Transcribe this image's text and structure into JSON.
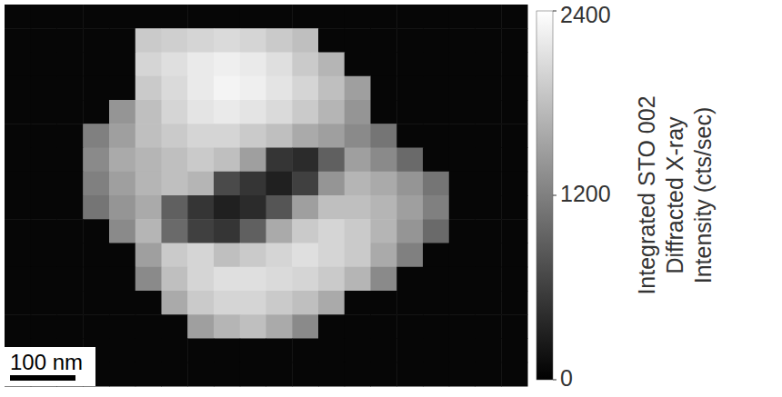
{
  "chart_data": {
    "type": "heatmap",
    "cells": [
      [
        60,
        60,
        60,
        60,
        60,
        60,
        60,
        60,
        60,
        60,
        60,
        60,
        60,
        60,
        60,
        60,
        60,
        60,
        60,
        60
      ],
      [
        60,
        60,
        60,
        60,
        60,
        1900,
        1950,
        2000,
        2050,
        2000,
        1900,
        1800,
        60,
        60,
        60,
        60,
        60,
        60,
        60,
        60
      ],
      [
        60,
        60,
        60,
        60,
        60,
        2000,
        2100,
        2200,
        2250,
        2200,
        2100,
        1900,
        1700,
        60,
        60,
        60,
        60,
        60,
        60,
        60
      ],
      [
        60,
        60,
        60,
        60,
        60,
        1900,
        2050,
        2200,
        2300,
        2250,
        2150,
        2000,
        1800,
        1500,
        60,
        60,
        60,
        60,
        60,
        60
      ],
      [
        60,
        60,
        60,
        60,
        1400,
        1800,
        2000,
        2150,
        2200,
        2150,
        2050,
        1900,
        1700,
        1400,
        60,
        60,
        60,
        60,
        60,
        60
      ],
      [
        60,
        60,
        60,
        1200,
        1500,
        1800,
        1900,
        2000,
        2000,
        1900,
        1800,
        1600,
        1500,
        1300,
        1100,
        60,
        60,
        60,
        60,
        60
      ],
      [
        60,
        60,
        60,
        1300,
        1600,
        1700,
        1800,
        1900,
        1800,
        1500,
        500,
        400,
        900,
        1500,
        1300,
        1000,
        60,
        60,
        60,
        60
      ],
      [
        60,
        60,
        60,
        1200,
        1500,
        1700,
        1800,
        1700,
        700,
        500,
        300,
        600,
        1400,
        1700,
        1600,
        1400,
        1100,
        60,
        60,
        60
      ],
      [
        60,
        60,
        60,
        1100,
        1400,
        1600,
        900,
        500,
        300,
        400,
        800,
        1500,
        1800,
        1800,
        1700,
        1500,
        1200,
        60,
        60,
        60
      ],
      [
        60,
        60,
        60,
        60,
        1300,
        1700,
        1000,
        600,
        500,
        900,
        1600,
        1900,
        2000,
        1900,
        1700,
        1400,
        1000,
        60,
        60,
        60
      ],
      [
        60,
        60,
        60,
        60,
        60,
        1500,
        1900,
        2000,
        1800,
        1900,
        2000,
        2100,
        2000,
        1900,
        1600,
        1200,
        60,
        60,
        60,
        60
      ],
      [
        60,
        60,
        60,
        60,
        60,
        1300,
        1800,
        2000,
        2100,
        2100,
        2050,
        2000,
        1900,
        1700,
        1300,
        60,
        60,
        60,
        60,
        60
      ],
      [
        60,
        60,
        60,
        60,
        60,
        60,
        1600,
        1900,
        2000,
        2000,
        1900,
        1800,
        1600,
        60,
        60,
        60,
        60,
        60,
        60,
        60
      ],
      [
        60,
        60,
        60,
        60,
        60,
        60,
        60,
        1500,
        1700,
        1800,
        1600,
        1300,
        60,
        60,
        60,
        60,
        60,
        60,
        60,
        60
      ],
      [
        60,
        60,
        60,
        60,
        60,
        60,
        60,
        60,
        60,
        60,
        60,
        60,
        60,
        60,
        60,
        60,
        60,
        60,
        60,
        60
      ],
      [
        60,
        60,
        60,
        60,
        60,
        60,
        60,
        60,
        60,
        60,
        60,
        60,
        60,
        60,
        60,
        60,
        60,
        60,
        60,
        60
      ]
    ],
    "colorbar": {
      "range": [
        0,
        2400
      ],
      "ticks": [
        0,
        1200,
        2400
      ],
      "label": [
        "Integrated STO 002",
        "Diffracted X-ray",
        "Intensity (cts/sec)"
      ]
    },
    "scale_bar": {
      "label": "100 nm"
    }
  }
}
